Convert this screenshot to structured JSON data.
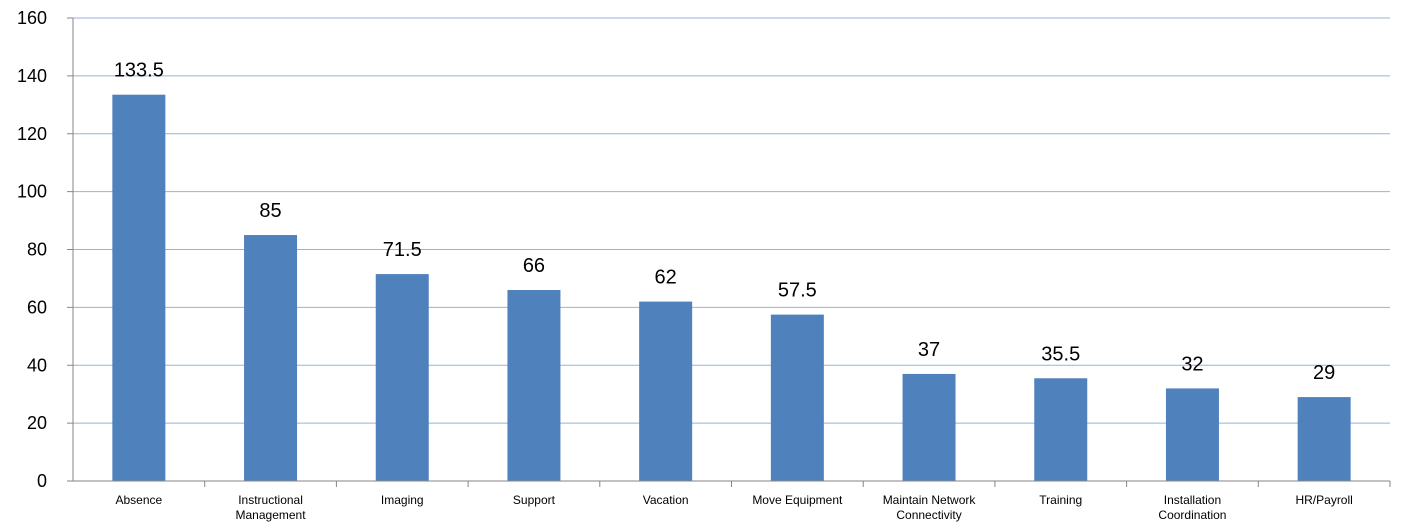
{
  "chart_data": {
    "type": "bar",
    "categories": [
      "Absence",
      "Instructional Management",
      "Imaging",
      "Support",
      "Vacation",
      "Move Equipment",
      "Maintain Network Connectivity",
      "Training",
      "Installation Coordination",
      "HR/Payroll"
    ],
    "category_lines": [
      [
        "Absence"
      ],
      [
        "Instructional",
        "Management"
      ],
      [
        "Imaging"
      ],
      [
        "Support"
      ],
      [
        "Vacation"
      ],
      [
        "Move Equipment"
      ],
      [
        "Maintain Network",
        "Connectivity"
      ],
      [
        "Training"
      ],
      [
        "Installation",
        "Coordination"
      ],
      [
        "HR/Payroll"
      ]
    ],
    "values": [
      133.5,
      85,
      71.5,
      66,
      62,
      57.5,
      37,
      35.5,
      32,
      29
    ],
    "data_labels": [
      "133.5",
      "85",
      "71.5",
      "66",
      "62",
      "57.5",
      "37",
      "35.5",
      "32",
      "29"
    ],
    "yticks": [
      "0",
      "20",
      "40",
      "60",
      "80",
      "100",
      "120",
      "140",
      "160"
    ],
    "ylim": [
      0,
      160
    ],
    "title": "",
    "xlabel": "",
    "ylabel": "",
    "grid": true,
    "legend": "none",
    "colors": {
      "bar": "#4F81BD",
      "grid": "#95B3D7",
      "axis": "#868686"
    }
  }
}
